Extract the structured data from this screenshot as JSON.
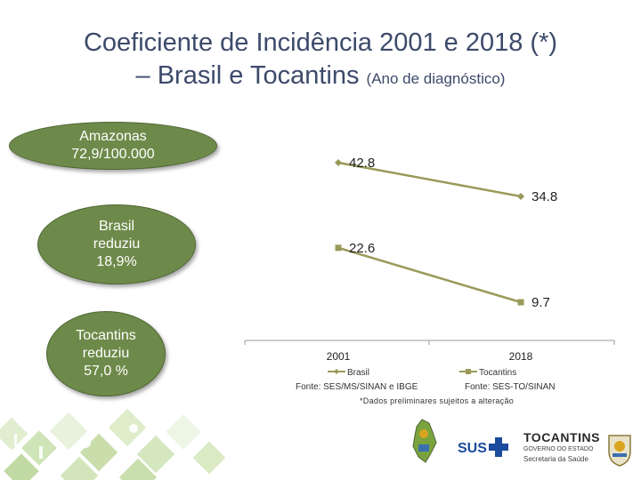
{
  "title": {
    "line1": "Coeficiente de Incidência 2001 e 2018 (*)",
    "line2_main": "– Brasil e Tocantins",
    "line2_sub": "(Ano de diagnóstico)"
  },
  "callouts": {
    "amazonas": [
      "Amazonas",
      "72,9/100.000"
    ],
    "brasil": [
      "Brasil",
      "reduziu",
      "18,9%"
    ],
    "tocantins": [
      "Tocantins",
      "reduziu",
      "57,0 %"
    ]
  },
  "chart_data": {
    "type": "line",
    "categories": [
      "2001",
      "2018"
    ],
    "series": [
      {
        "name": "Brasil",
        "values": [
          42.8,
          34.8
        ],
        "color": "#9a9a5a",
        "marker": "diamond"
      },
      {
        "name": "Tocantins",
        "values": [
          22.6,
          9.7
        ],
        "color": "#9a9a5a",
        "marker": "square"
      }
    ],
    "data_labels": [
      "42.8",
      "34.8",
      "22.6",
      "9.7"
    ],
    "legend_position": "bottom",
    "grid": false
  },
  "sources": {
    "left": "Fonte: SES/MS/SINAN e IBGE",
    "right": "Fonte: SES-TO/SINAN",
    "note": "*Dados preliminares sujeitos a alteração"
  },
  "logos": {
    "sus": "SUS",
    "tocantins_name": "TOCANTINS",
    "tocantins_gov": "GOVERNO DO ESTADO",
    "tocantins_sec": "Secretaria da Saúde"
  },
  "colors": {
    "accent_green": "#6e8a4a",
    "title_blue": "#3d4a6b",
    "line": "#9a9a5a",
    "sus_blue": "#1a4b9c"
  }
}
